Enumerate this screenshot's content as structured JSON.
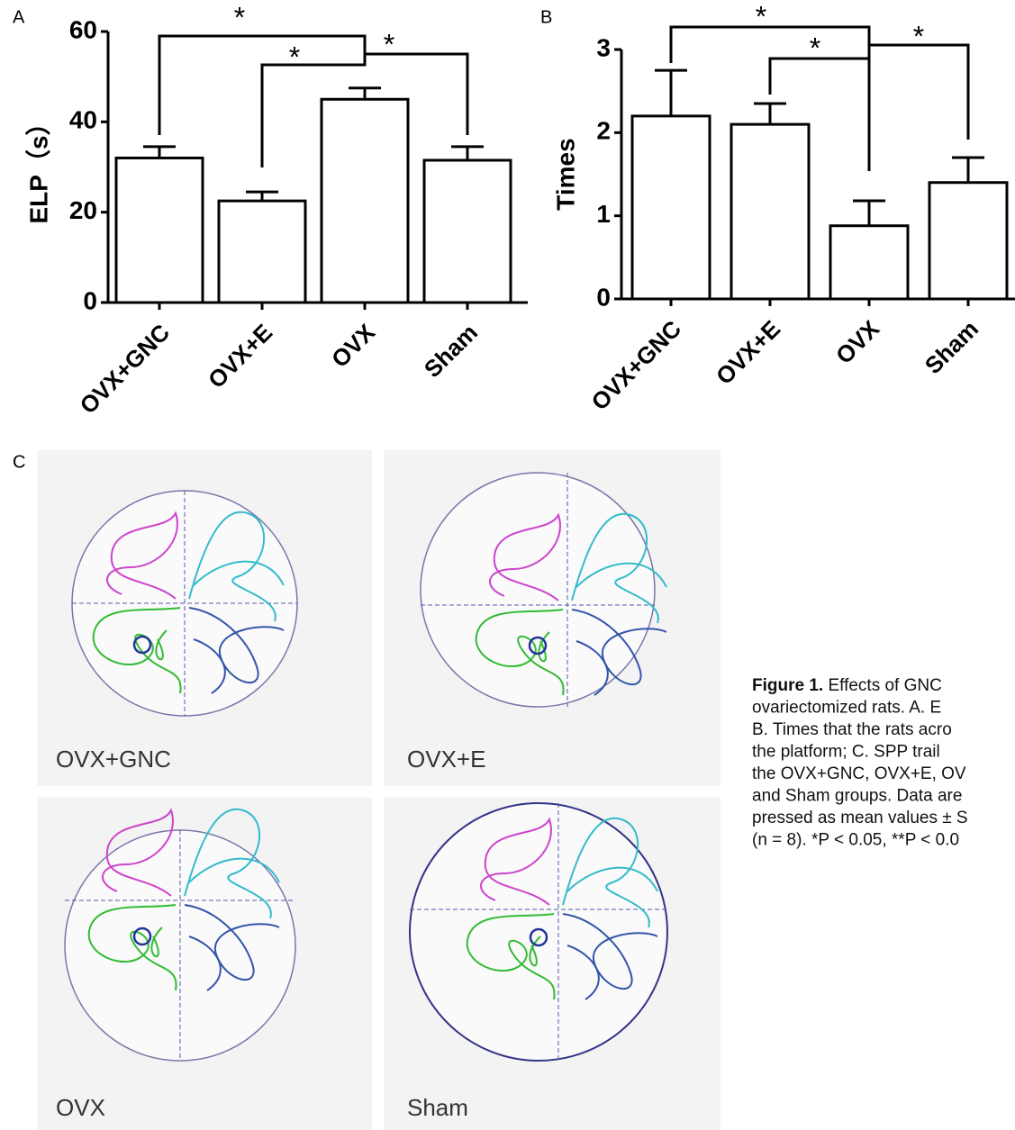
{
  "panel_labels": [
    "A",
    "B",
    "C"
  ],
  "chart_data": [
    {
      "type": "bar",
      "y_label": "ELP（s）",
      "categories": [
        "OVX+GNC",
        "OVX+E",
        "OVX",
        "Sham"
      ],
      "values": [
        32,
        22.5,
        45,
        31.5
      ],
      "errors": [
        2.5,
        2,
        2.5,
        3
      ],
      "color": "#ffffff",
      "ylim": [
        0,
        60
      ],
      "yticks": [
        0,
        20,
        40,
        60
      ],
      "annotations": [
        "*",
        "*",
        "*"
      ]
    },
    {
      "type": "bar",
      "y_label": "Times",
      "categories": [
        "OVX+GNC",
        "OVX+E",
        "OVX",
        "Sham"
      ],
      "values": [
        2.2,
        2.1,
        0.88,
        1.4
      ],
      "errors": [
        0.55,
        0.25,
        0.3,
        0.3
      ],
      "color": "#ffffff",
      "ylim": [
        0,
        3
      ],
      "yticks": [
        0,
        1,
        2,
        3
      ],
      "annotations": [
        "*",
        "*",
        "*"
      ]
    }
  ],
  "panel_c": {
    "labels": [
      "OVX+GNC",
      "OVX+E",
      "OVX",
      "Sham"
    ]
  },
  "caption": {
    "label": "Figure 1.",
    "lines": [
      " Effects of GNC",
      "ovariectomized rats. A. E",
      "B. Times that the rats acro",
      "the platform; C. SPP trail",
      "the OVX+GNC, OVX+E, OV",
      "and Sham groups. Data are",
      "pressed as mean values ± S",
      "(n = 8). *P < 0.05, **P < 0.0"
    ]
  }
}
